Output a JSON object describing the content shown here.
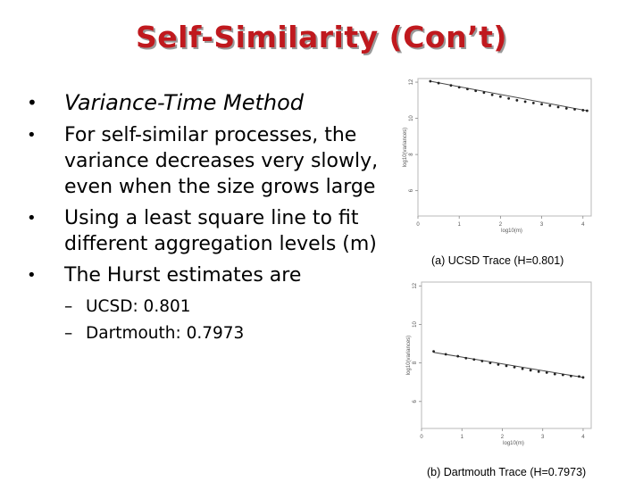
{
  "slide": {
    "title": "Self-Similarity (Con’t)",
    "bullets": [
      {
        "text": "Variance-Time Method",
        "style": "italic"
      },
      {
        "text": "For self-similar processes, the variance decreases very slowly, even when the size grows large"
      },
      {
        "text": "Using a least square line to fit different aggregation levels (m)"
      },
      {
        "text": "The Hurst estimates are"
      }
    ],
    "subbullets": [
      "UCSD: 0.801",
      "Dartmouth: 0.7973"
    ],
    "bullet_glyph": "•",
    "dash_glyph": "–"
  },
  "chart_data": [
    {
      "type": "scatter",
      "caption": "(a) UCSD Trace (H=0.801)",
      "xlabel": "log10(m)",
      "ylabel": "log10(variances)",
      "xlim": [
        0,
        4.2
      ],
      "ylim": [
        4.6,
        12.2
      ],
      "xticks": [
        "0",
        "1",
        "2",
        "3",
        "4"
      ],
      "yticks": [
        "12",
        "10",
        "8",
        "6"
      ],
      "points": [
        [
          0.3,
          12.05
        ],
        [
          0.5,
          11.95
        ],
        [
          0.8,
          11.82
        ],
        [
          1.0,
          11.72
        ],
        [
          1.2,
          11.62
        ],
        [
          1.4,
          11.52
        ],
        [
          1.6,
          11.42
        ],
        [
          1.8,
          11.3
        ],
        [
          2.0,
          11.2
        ],
        [
          2.2,
          11.1
        ],
        [
          2.4,
          11.0
        ],
        [
          2.6,
          10.92
        ],
        [
          2.8,
          10.85
        ],
        [
          3.0,
          10.78
        ],
        [
          3.2,
          10.7
        ],
        [
          3.4,
          10.62
        ],
        [
          3.6,
          10.55
        ],
        [
          3.8,
          10.5
        ],
        [
          4.0,
          10.45
        ],
        [
          4.1,
          10.42
        ]
      ],
      "fit": [
        [
          0.3,
          12.05
        ],
        [
          4.1,
          10.42
        ]
      ],
      "grid": false
    },
    {
      "type": "scatter",
      "caption": "(b) Dartmouth Trace (H=0.7973)",
      "xlabel": "log10(m)",
      "ylabel": "log10(variances)",
      "xlim": [
        0,
        4.2
      ],
      "ylim": [
        4.6,
        12.2
      ],
      "xticks": [
        "0",
        "1",
        "2",
        "3",
        "4"
      ],
      "yticks": [
        "12",
        "10",
        "8",
        "6"
      ],
      "points": [
        [
          0.3,
          8.6
        ],
        [
          0.6,
          8.45
        ],
        [
          0.9,
          8.35
        ],
        [
          1.1,
          8.25
        ],
        [
          1.3,
          8.18
        ],
        [
          1.5,
          8.1
        ],
        [
          1.7,
          8.0
        ],
        [
          1.9,
          7.92
        ],
        [
          2.1,
          7.85
        ],
        [
          2.3,
          7.78
        ],
        [
          2.5,
          7.7
        ],
        [
          2.7,
          7.62
        ],
        [
          2.9,
          7.55
        ],
        [
          3.1,
          7.5
        ],
        [
          3.3,
          7.42
        ],
        [
          3.5,
          7.38
        ],
        [
          3.7,
          7.32
        ],
        [
          3.9,
          7.3
        ],
        [
          4.0,
          7.25
        ]
      ],
      "fit": [
        [
          0.3,
          8.55
        ],
        [
          4.0,
          7.25
        ]
      ],
      "grid": false
    }
  ]
}
